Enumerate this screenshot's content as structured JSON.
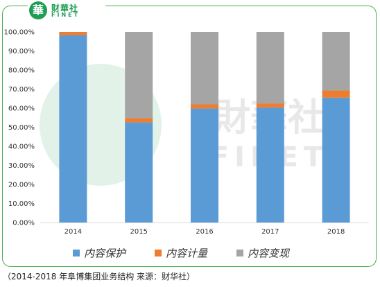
{
  "logo": {
    "seal_char": "華",
    "cn_text": "财華社",
    "en_text": "FINET"
  },
  "watermark": {
    "cn_text": "財華社",
    "en_text": "FINET"
  },
  "caption": "（2014-2018 年阜博集团业务结构   来源：财华社）",
  "chart_data": {
    "type": "bar",
    "stacked": true,
    "categories": [
      "2014",
      "2015",
      "2016",
      "2017",
      "2018"
    ],
    "series": [
      {
        "name": "内容保护",
        "color": "#5b9bd5",
        "values": [
          98.2,
          52.5,
          59.8,
          60.3,
          65.5
        ]
      },
      {
        "name": "内容计量",
        "color": "#ed7d31",
        "values": [
          1.8,
          2.2,
          2.2,
          2.2,
          3.8
        ]
      },
      {
        "name": "内容变现",
        "color": "#a5a5a5",
        "values": [
          0.0,
          45.3,
          38.0,
          37.5,
          30.7
        ]
      }
    ],
    "title": "",
    "xlabel": "",
    "ylabel": "",
    "ylim": [
      0,
      100
    ],
    "yticks": [
      "0.00%",
      "10.00%",
      "20.00%",
      "30.00%",
      "40.00%",
      "50.00%",
      "60.00%",
      "70.00%",
      "80.00%",
      "90.00%",
      "100.00%"
    ],
    "grid": false,
    "legend_position": "bottom"
  }
}
